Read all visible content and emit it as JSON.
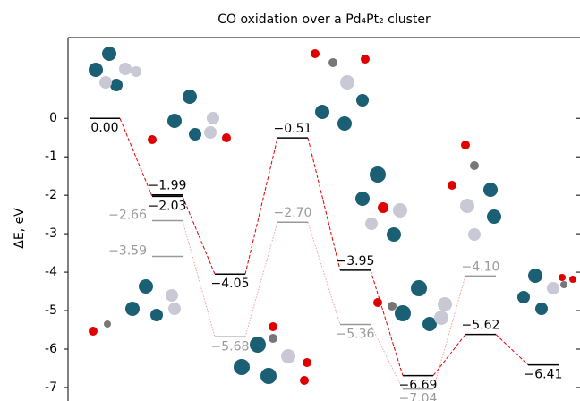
{
  "chart_data": {
    "type": "energy-levels",
    "title": "CO oxidation over a Pd₄Pt₂ cluster",
    "y_label": "ΔE, eV",
    "categories": [
      null,
      null,
      null,
      null,
      null,
      null,
      null,
      null
    ],
    "ylim": [
      -7.35,
      2.1
    ],
    "yticks": [
      0,
      -1,
      -2,
      -3,
      -4,
      -5,
      -6,
      -7
    ],
    "series": [
      {
        "color": "#000000",
        "line_color": "#e00000",
        "values": [
          0.0,
          -2.03,
          -4.05,
          -0.51,
          -3.95,
          -6.69,
          -5.62,
          -6.41
        ],
        "value_labels": [
          "0.00",
          "−2.03",
          "−4.05",
          "−0.51",
          "−3.95",
          "−6.69",
          "−5.62",
          "−6.41"
        ]
      },
      {
        "color": "#000000",
        "line_color": "#e00000",
        "values": [
          null,
          -1.99,
          null,
          null,
          null,
          null,
          null,
          null
        ],
        "value_labels": [
          null,
          "−1.99",
          null,
          null,
          null,
          null,
          null,
          null
        ]
      },
      {
        "color": "#999999",
        "line_color": "#f2a0a0",
        "values": [
          null,
          -2.66,
          -5.68,
          -2.7,
          -5.36,
          -7.04,
          -4.1,
          null
        ],
        "value_labels": [
          null,
          "−2.66",
          "−5.68",
          "−2.70",
          "−5.36",
          "−7.04",
          "−4.10",
          null
        ]
      },
      {
        "color": "#999999",
        "line_color": "#f2a0a0",
        "values": [
          null,
          -3.59,
          null,
          null,
          null,
          null,
          null,
          null
        ],
        "value_labels": [
          null,
          "−3.59",
          null,
          null,
          null,
          null,
          null,
          null
        ]
      }
    ]
  }
}
